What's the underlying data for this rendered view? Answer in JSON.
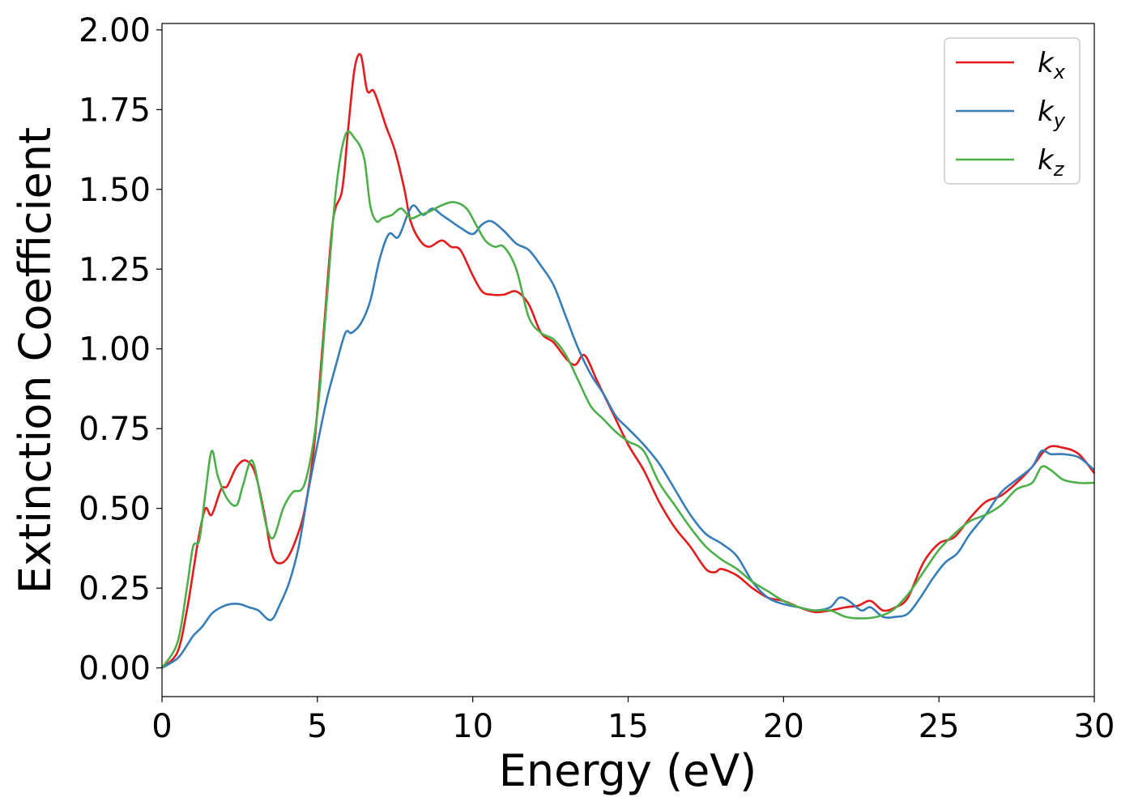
{
  "chart_data": {
    "type": "line",
    "title": "",
    "xlabel": "Energy (eV)",
    "ylabel": "Extinction Coefficient",
    "xlim": [
      0,
      30
    ],
    "ylim": [
      -0.09,
      2.02
    ],
    "xticks": [
      0,
      5,
      10,
      15,
      20,
      25,
      30
    ],
    "yticks": [
      0.0,
      0.25,
      0.5,
      0.75,
      1.0,
      1.25,
      1.5,
      1.75,
      2.0
    ],
    "ytick_labels": [
      "0.00",
      "0.25",
      "0.50",
      "0.75",
      "1.00",
      "1.25",
      "1.50",
      "1.75",
      "2.00"
    ],
    "xtick_labels": [
      "0",
      "5",
      "10",
      "15",
      "20",
      "25",
      "30"
    ],
    "grid": false,
    "legend_position": "top-right",
    "series": [
      {
        "name_base": "k",
        "name_sub": "x",
        "color": "#e41a1c",
        "x": [
          0,
          0.5,
          0.8,
          1.0,
          1.2,
          1.4,
          1.6,
          1.9,
          2.1,
          2.4,
          2.7,
          3.0,
          3.3,
          3.5,
          3.7,
          4.0,
          4.3,
          4.6,
          4.9,
          5.2,
          5.5,
          5.8,
          6.0,
          6.2,
          6.4,
          6.6,
          6.8,
          7.0,
          7.2,
          7.5,
          7.8,
          8.0,
          8.3,
          8.6,
          9.0,
          9.3,
          9.6,
          10.0,
          10.3,
          10.6,
          11.0,
          11.4,
          11.8,
          12.2,
          12.6,
          13.0,
          13.3,
          13.6,
          14.0,
          14.5,
          15.0,
          15.5,
          16.0,
          16.5,
          17.0,
          17.5,
          17.8,
          18.0,
          18.5,
          19.0,
          19.5,
          20.0,
          20.5,
          21.0,
          21.5,
          22.0,
          22.4,
          22.8,
          23.2,
          23.6,
          24.0,
          24.5,
          25.0,
          25.5,
          26.0,
          26.5,
          27.0,
          27.5,
          28.0,
          28.5,
          29.0,
          29.5,
          30.0
        ],
        "y": [
          0.0,
          0.05,
          0.18,
          0.3,
          0.42,
          0.5,
          0.48,
          0.56,
          0.57,
          0.63,
          0.65,
          0.61,
          0.48,
          0.37,
          0.33,
          0.34,
          0.4,
          0.5,
          0.7,
          1.05,
          1.4,
          1.5,
          1.7,
          1.88,
          1.92,
          1.81,
          1.81,
          1.76,
          1.7,
          1.62,
          1.5,
          1.4,
          1.34,
          1.32,
          1.34,
          1.32,
          1.31,
          1.23,
          1.18,
          1.17,
          1.17,
          1.18,
          1.14,
          1.05,
          1.02,
          0.97,
          0.95,
          0.98,
          0.9,
          0.8,
          0.7,
          0.62,
          0.52,
          0.44,
          0.38,
          0.31,
          0.3,
          0.31,
          0.29,
          0.25,
          0.22,
          0.21,
          0.19,
          0.175,
          0.18,
          0.19,
          0.195,
          0.21,
          0.18,
          0.19,
          0.22,
          0.33,
          0.39,
          0.41,
          0.47,
          0.52,
          0.54,
          0.58,
          0.63,
          0.69,
          0.69,
          0.67,
          0.61
        ]
      },
      {
        "name_base": "k",
        "name_sub": "y",
        "color": "#377eb8",
        "x": [
          0,
          0.5,
          0.8,
          1.0,
          1.3,
          1.6,
          1.9,
          2.2,
          2.5,
          2.8,
          3.1,
          3.5,
          3.8,
          4.1,
          4.4,
          4.7,
          5.0,
          5.3,
          5.6,
          5.9,
          6.1,
          6.4,
          6.7,
          7.0,
          7.3,
          7.6,
          7.9,
          8.1,
          8.4,
          8.7,
          9.0,
          9.3,
          9.6,
          10.0,
          10.3,
          10.6,
          11.0,
          11.4,
          11.8,
          12.2,
          12.6,
          13.0,
          13.4,
          13.8,
          14.2,
          14.6,
          15.0,
          15.5,
          16.0,
          16.5,
          17.0,
          17.5,
          18.0,
          18.5,
          19.0,
          19.5,
          20.0,
          20.5,
          21.0,
          21.5,
          21.8,
          22.1,
          22.5,
          22.8,
          23.2,
          23.6,
          24.0,
          24.4,
          24.8,
          25.2,
          25.6,
          26.0,
          26.5,
          27.0,
          27.5,
          28.0,
          28.3,
          28.6,
          29.0,
          29.5,
          30.0
        ],
        "y": [
          0.0,
          0.03,
          0.07,
          0.1,
          0.13,
          0.17,
          0.19,
          0.2,
          0.2,
          0.19,
          0.18,
          0.15,
          0.2,
          0.27,
          0.38,
          0.55,
          0.7,
          0.84,
          0.95,
          1.05,
          1.05,
          1.08,
          1.15,
          1.28,
          1.36,
          1.35,
          1.42,
          1.45,
          1.42,
          1.44,
          1.42,
          1.4,
          1.38,
          1.36,
          1.39,
          1.4,
          1.37,
          1.33,
          1.31,
          1.26,
          1.2,
          1.1,
          1.0,
          0.92,
          0.86,
          0.79,
          0.75,
          0.7,
          0.64,
          0.56,
          0.48,
          0.42,
          0.39,
          0.35,
          0.27,
          0.22,
          0.2,
          0.19,
          0.18,
          0.19,
          0.22,
          0.21,
          0.18,
          0.19,
          0.16,
          0.16,
          0.17,
          0.22,
          0.28,
          0.33,
          0.36,
          0.42,
          0.48,
          0.55,
          0.59,
          0.63,
          0.68,
          0.67,
          0.67,
          0.66,
          0.62
        ]
      },
      {
        "name_base": "k",
        "name_sub": "z",
        "color": "#4daf4a",
        "x": [
          0,
          0.5,
          0.8,
          1.0,
          1.2,
          1.4,
          1.6,
          1.8,
          2.1,
          2.4,
          2.6,
          2.9,
          3.2,
          3.4,
          3.6,
          3.9,
          4.2,
          4.6,
          5.0,
          5.3,
          5.6,
          5.9,
          6.2,
          6.5,
          6.7,
          6.9,
          7.1,
          7.4,
          7.7,
          8.0,
          8.3,
          8.6,
          9.0,
          9.4,
          9.8,
          10.1,
          10.4,
          10.7,
          11.0,
          11.4,
          11.8,
          12.2,
          12.6,
          13.0,
          13.4,
          13.8,
          14.2,
          14.6,
          15.0,
          15.5,
          16.0,
          16.5,
          17.0,
          17.5,
          18.0,
          18.5,
          19.0,
          19.5,
          20.0,
          20.5,
          21.0,
          21.5,
          22.0,
          22.5,
          23.0,
          23.5,
          24.0,
          24.5,
          25.0,
          25.5,
          26.0,
          26.5,
          27.0,
          27.5,
          28.0,
          28.3,
          28.6,
          29.0,
          29.5,
          30.0
        ],
        "y": [
          0.0,
          0.08,
          0.25,
          0.38,
          0.4,
          0.55,
          0.68,
          0.6,
          0.53,
          0.51,
          0.57,
          0.65,
          0.52,
          0.43,
          0.41,
          0.5,
          0.55,
          0.58,
          0.8,
          1.15,
          1.5,
          1.67,
          1.66,
          1.6,
          1.45,
          1.4,
          1.41,
          1.42,
          1.44,
          1.41,
          1.42,
          1.43,
          1.45,
          1.46,
          1.44,
          1.39,
          1.34,
          1.32,
          1.32,
          1.25,
          1.1,
          1.05,
          1.03,
          0.98,
          0.9,
          0.82,
          0.78,
          0.74,
          0.71,
          0.68,
          0.58,
          0.51,
          0.44,
          0.38,
          0.34,
          0.31,
          0.27,
          0.24,
          0.21,
          0.19,
          0.18,
          0.18,
          0.16,
          0.155,
          0.16,
          0.18,
          0.23,
          0.3,
          0.37,
          0.42,
          0.46,
          0.48,
          0.51,
          0.56,
          0.58,
          0.63,
          0.62,
          0.59,
          0.58,
          0.58
        ]
      }
    ]
  }
}
